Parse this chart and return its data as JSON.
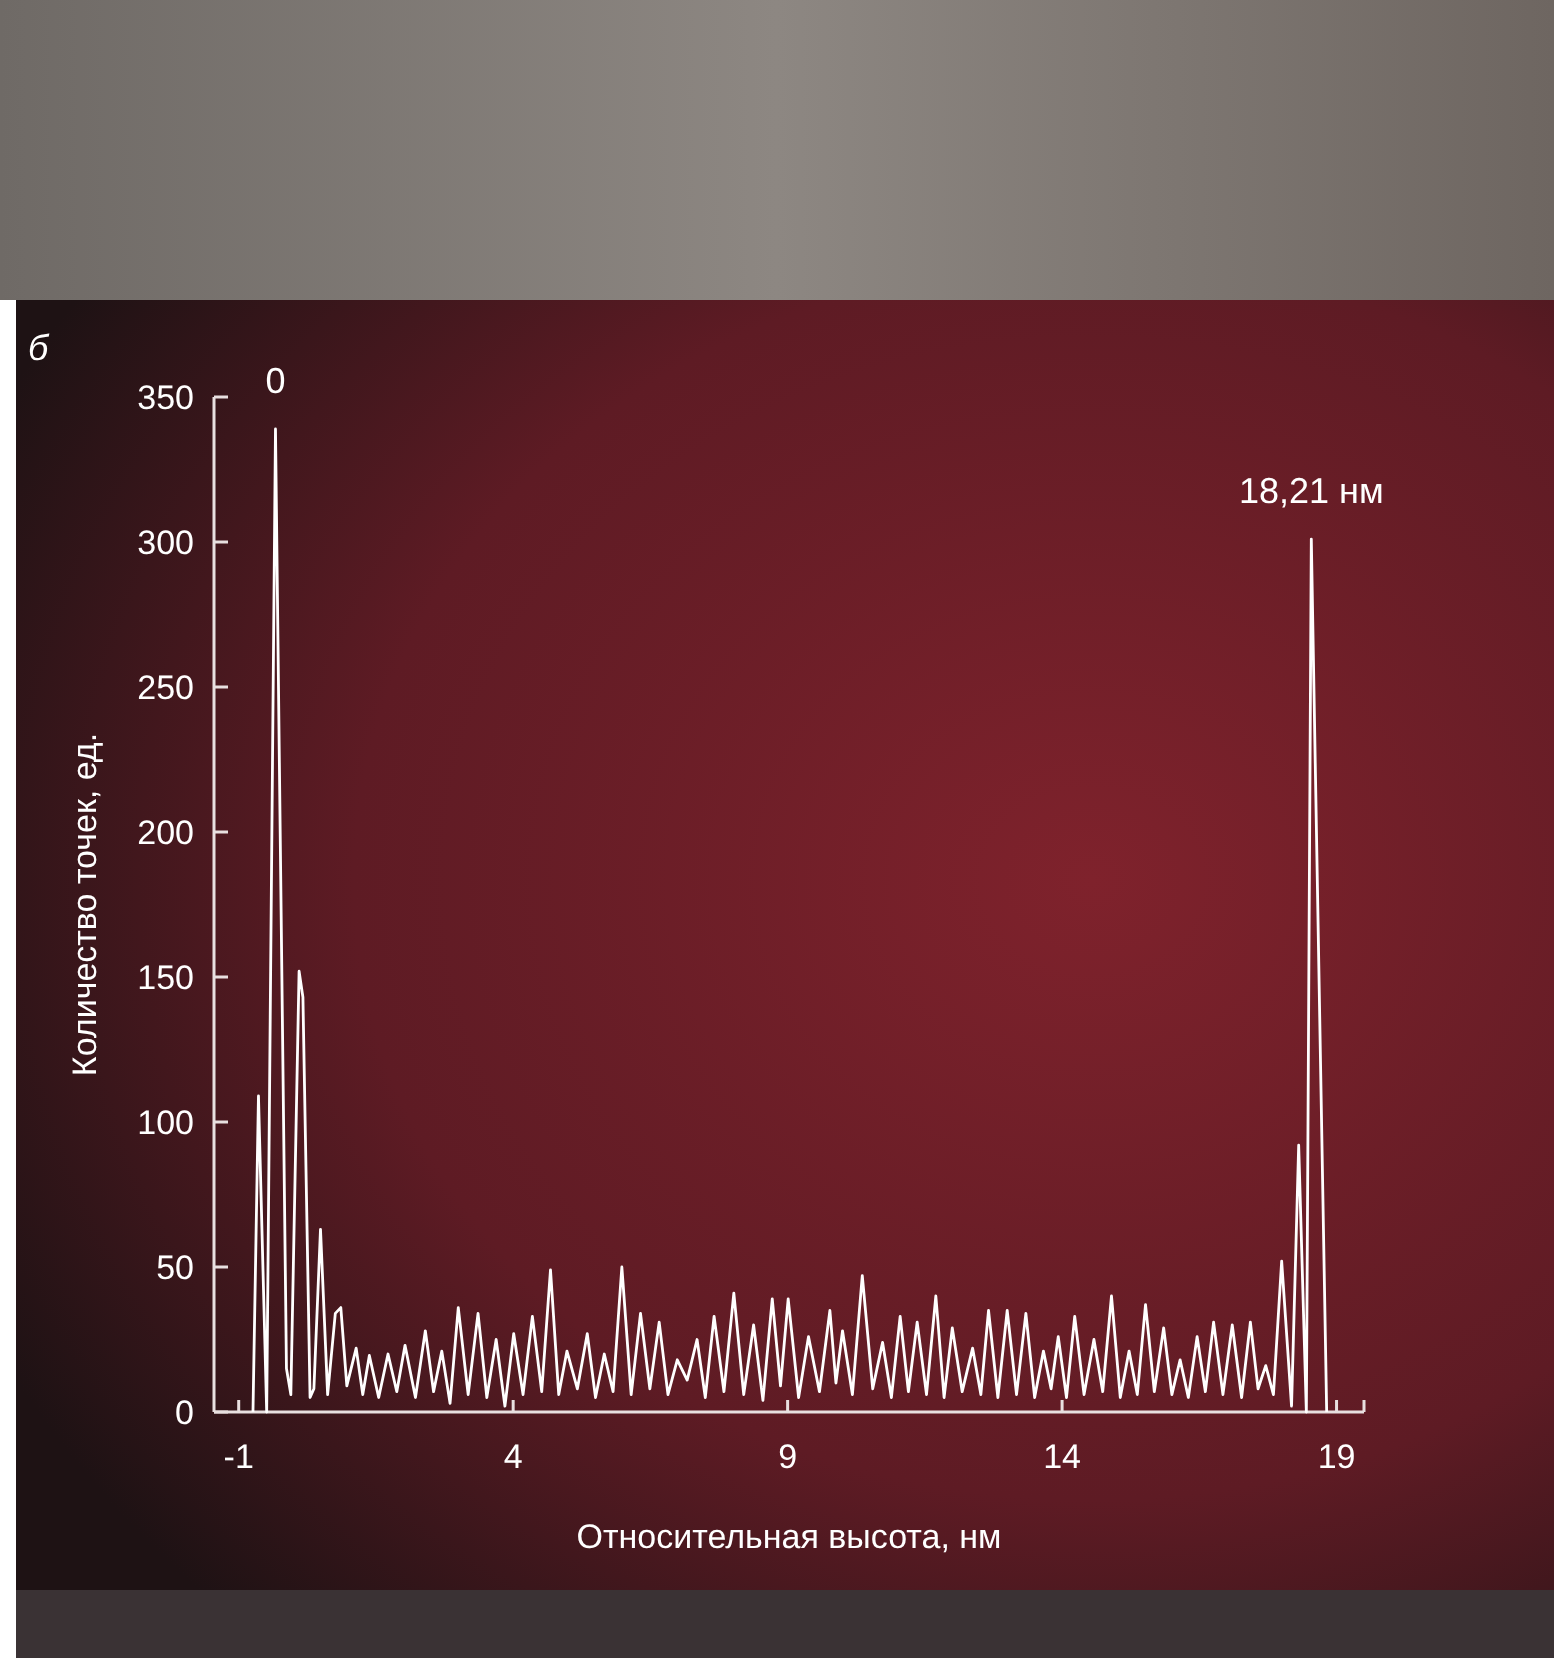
{
  "chart_data": {
    "type": "line",
    "xlabel": "Относительная высота, нм",
    "ylabel": "Количество точек, ед.",
    "annotations": [
      "б",
      {
        "text": "0",
        "x": -0.33,
        "y": 339
      },
      {
        "text": "18,21 нм",
        "x": 18.54,
        "y": 301
      }
    ],
    "xlim": [
      -1.45,
      19.5
    ],
    "xticks": [
      -1,
      4,
      9,
      14,
      19
    ],
    "ylim": [
      0,
      350
    ],
    "yticks": [
      0,
      50,
      100,
      150,
      200,
      250,
      300,
      350
    ],
    "grid": false,
    "marker": "none",
    "line_style": "solid",
    "series": [
      {
        "color": "#ffffff",
        "x": [
          -0.74,
          -0.64,
          -0.49,
          -0.33,
          -0.13,
          -0.05,
          0.1,
          0.17,
          0.3,
          0.37,
          0.49,
          0.62,
          0.76,
          0.86,
          0.97,
          1.14,
          1.26,
          1.38,
          1.55,
          1.72,
          1.88,
          2.03,
          2.22,
          2.4,
          2.55,
          2.7,
          2.85,
          3.0,
          3.18,
          3.36,
          3.52,
          3.69,
          3.85,
          4.01,
          4.18,
          4.35,
          4.52,
          4.68,
          4.83,
          4.98,
          5.17,
          5.35,
          5.5,
          5.66,
          5.82,
          5.98,
          6.15,
          6.32,
          6.49,
          6.66,
          6.82,
          6.99,
          7.17,
          7.35,
          7.5,
          7.66,
          7.84,
          8.02,
          8.2,
          8.38,
          8.55,
          8.72,
          8.87,
          9.01,
          9.2,
          9.38,
          9.58,
          9.77,
          9.88,
          10.0,
          10.18,
          10.36,
          10.55,
          10.73,
          10.89,
          11.05,
          11.2,
          11.36,
          11.53,
          11.7,
          11.85,
          12.0,
          12.18,
          12.37,
          12.52,
          12.66,
          12.83,
          13.0,
          13.17,
          13.34,
          13.5,
          13.66,
          13.8,
          13.93,
          14.08,
          14.23,
          14.4,
          14.58,
          14.74,
          14.9,
          15.06,
          15.22,
          15.37,
          15.52,
          15.68,
          15.85,
          16.0,
          16.15,
          16.3,
          16.46,
          16.61,
          16.76,
          16.93,
          17.1,
          17.27,
          17.43,
          17.57,
          17.71,
          17.85,
          18.0,
          18.18,
          18.31,
          18.45,
          18.54,
          18.82
        ],
        "values": [
          0,
          109,
          0,
          339,
          15,
          6,
          152,
          143,
          5,
          8,
          63,
          6,
          34,
          36,
          9,
          22,
          6,
          19.5,
          5,
          20,
          7,
          23,
          5,
          28,
          7,
          21,
          3,
          36,
          6,
          34,
          5,
          25,
          2,
          27,
          6,
          33,
          7,
          49,
          6,
          21,
          8,
          27,
          5,
          20,
          7,
          50,
          6,
          34,
          8,
          31,
          6,
          18,
          11,
          25,
          5,
          33,
          7,
          41,
          6,
          30,
          4,
          39,
          9,
          39,
          5,
          26,
          7,
          35,
          10,
          28,
          6,
          47,
          8,
          24,
          5,
          33,
          7,
          31,
          6,
          40,
          5,
          29,
          7,
          22,
          6,
          35,
          5,
          35,
          6,
          34,
          5,
          21,
          8,
          26,
          5,
          33,
          6,
          25,
          7,
          40,
          5,
          21,
          6,
          37,
          7,
          29,
          6,
          18,
          5,
          26,
          7,
          31,
          6,
          30,
          5,
          31,
          8,
          16,
          6,
          52,
          2,
          92,
          0,
          301,
          0
        ]
      }
    ]
  }
}
